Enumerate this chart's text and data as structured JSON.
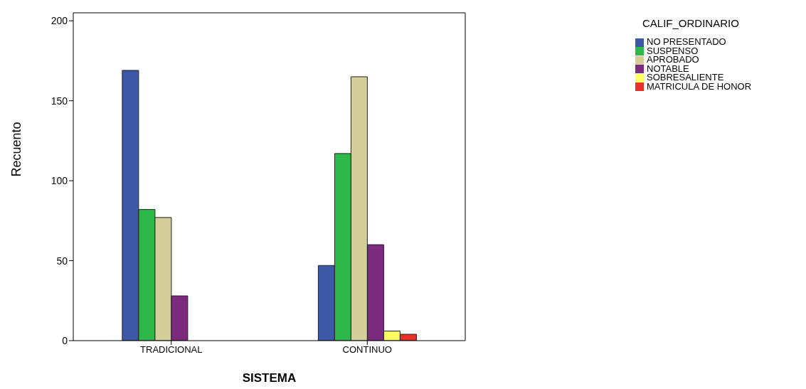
{
  "chart_data": {
    "type": "bar",
    "xlabel": "SISTEMA",
    "ylabel": "Recuento",
    "legend_title": "CALIF_ORDINARIO",
    "legend": "top right",
    "categories": [
      "TRADICIONAL",
      "CONTINUO"
    ],
    "series": [
      {
        "name": "NO PRESENTADO",
        "color": "#3e58a8",
        "values": [
          169,
          47
        ]
      },
      {
        "name": "SUSPENSO",
        "color": "#2fb84a",
        "values": [
          82,
          117
        ]
      },
      {
        "name": "APROBADO",
        "color": "#d4cf9a",
        "values": [
          77,
          165
        ]
      },
      {
        "name": "NOTABLE",
        "color": "#7b2a7e",
        "values": [
          28,
          60
        ]
      },
      {
        "name": "SOBRESALIENTE",
        "color": "#ffff66",
        "values": [
          0,
          6
        ]
      },
      {
        "name": "MATRICULA DE HONOR",
        "color": "#e8302a",
        "values": [
          0,
          4
        ]
      }
    ],
    "ylim": [
      0,
      205
    ],
    "yticks": [
      0,
      50,
      100,
      150,
      200
    ]
  }
}
